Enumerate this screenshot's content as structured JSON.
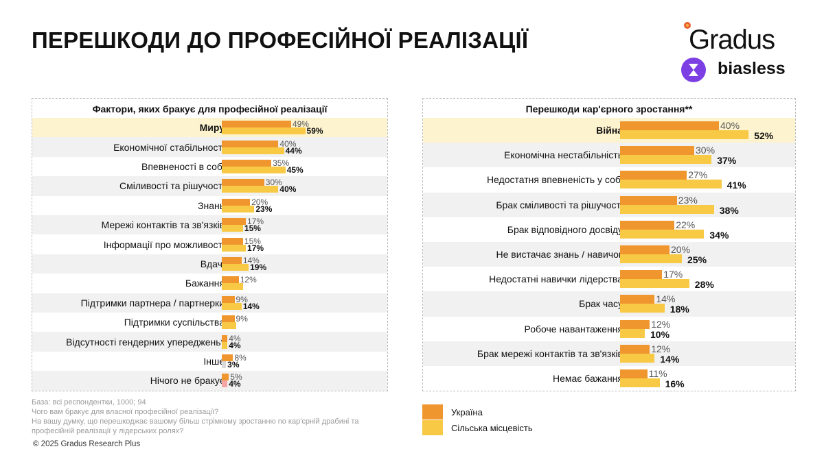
{
  "title": "ПЕРЕШКОДИ ДО ПРОФЕСІЙНОЇ РЕАЛІЗАЦІЇ",
  "logos": {
    "gradus": "Gradus",
    "biasless": "biasless"
  },
  "colors": {
    "ukraine": "#f0962f",
    "rural": "#f8c944",
    "highlight_row": "#fdf3cf",
    "alt_row": "#f1f1f1",
    "rural_other": "#d9d9d9",
    "rural_nothing": "#f4a6a6"
  },
  "chart_data": [
    {
      "type": "bar",
      "orientation": "horizontal",
      "title": "Фактори, яких бракує для професійної реалізації",
      "unit": "%",
      "categories": [
        "Миру",
        "Економічної стабільності",
        "Впевненості в собі",
        "Сміливості та рішучості",
        "Знань",
        "Мережі контактів та зв'язків",
        "Інформації про можливості",
        "Вдачі",
        "Бажання",
        "Підтримки партнера / партнерки",
        "Підтримки суспільства",
        "Відсутності гендерних упереджень*",
        "Інше",
        "Нічого не бракує"
      ],
      "highlight": "Миру",
      "series": [
        {
          "name": "Україна",
          "values": [
            49,
            40,
            35,
            30,
            20,
            17,
            15,
            14,
            12,
            9,
            9,
            4,
            8,
            5
          ],
          "labels": [
            "49%",
            "40%",
            "35%",
            "30%",
            "20%",
            "17%",
            "15%",
            "14%",
            "12%",
            "9%",
            "9%",
            "4%",
            "8%",
            "5%"
          ]
        },
        {
          "name": "Сільська місцевість",
          "values": [
            59,
            44,
            45,
            40,
            23,
            15,
            17,
            19,
            15,
            14,
            10,
            4,
            3,
            4
          ],
          "labels": [
            "59%",
            "44%",
            "45%",
            "40%",
            "23%",
            "15%",
            "17%",
            "19%",
            null,
            "14%",
            null,
            "4%",
            "3%",
            "4%"
          ]
        }
      ]
    },
    {
      "type": "bar",
      "orientation": "horizontal",
      "title": "Перешкоди кар'єрного зростання**",
      "unit": "%",
      "categories": [
        "Війна",
        "Економічна нестабільність",
        "Недостатня впевненість у собі",
        "Брак сміливості та рішучості",
        "Брак відповідного досвіду",
        "Не вистачає знань / навичок",
        "Недостатні навички лідерства",
        "Брак часу",
        "Робоче навантаження",
        "Брак мережі контактів та зв'язків",
        "Немає бажання"
      ],
      "highlight": "Війна",
      "series": [
        {
          "name": "Україна",
          "values": [
            40,
            30,
            27,
            23,
            22,
            20,
            17,
            14,
            12,
            12,
            11
          ],
          "labels": [
            "40%",
            "30%",
            "27%",
            "23%",
            "22%",
            "20%",
            "17%",
            "14%",
            "12%",
            "12%",
            "11%"
          ]
        },
        {
          "name": "Сільська місцевість",
          "values": [
            52,
            37,
            41,
            38,
            34,
            25,
            28,
            18,
            10,
            14,
            16
          ],
          "labels": [
            "52%",
            "37%",
            "41%",
            "38%",
            "34%",
            "25%",
            "28%",
            "18%",
            "10%",
            "14%",
            "16%"
          ]
        }
      ]
    }
  ],
  "legend": [
    {
      "label": "Україна"
    },
    {
      "label": "Сільська місцевість"
    }
  ],
  "notes": [
    "База: всі респондентки, 1000; 94",
    "Чого вам бракує для власної професійної реалізації?",
    "На вашу думку, що перешкоджає вашому більш стрімкому зростанню по кар'єрній драбині та",
    "професійній реалізації у лідерських ролях?"
  ],
  "copyright": "© 2025 Gradus Research Plus"
}
